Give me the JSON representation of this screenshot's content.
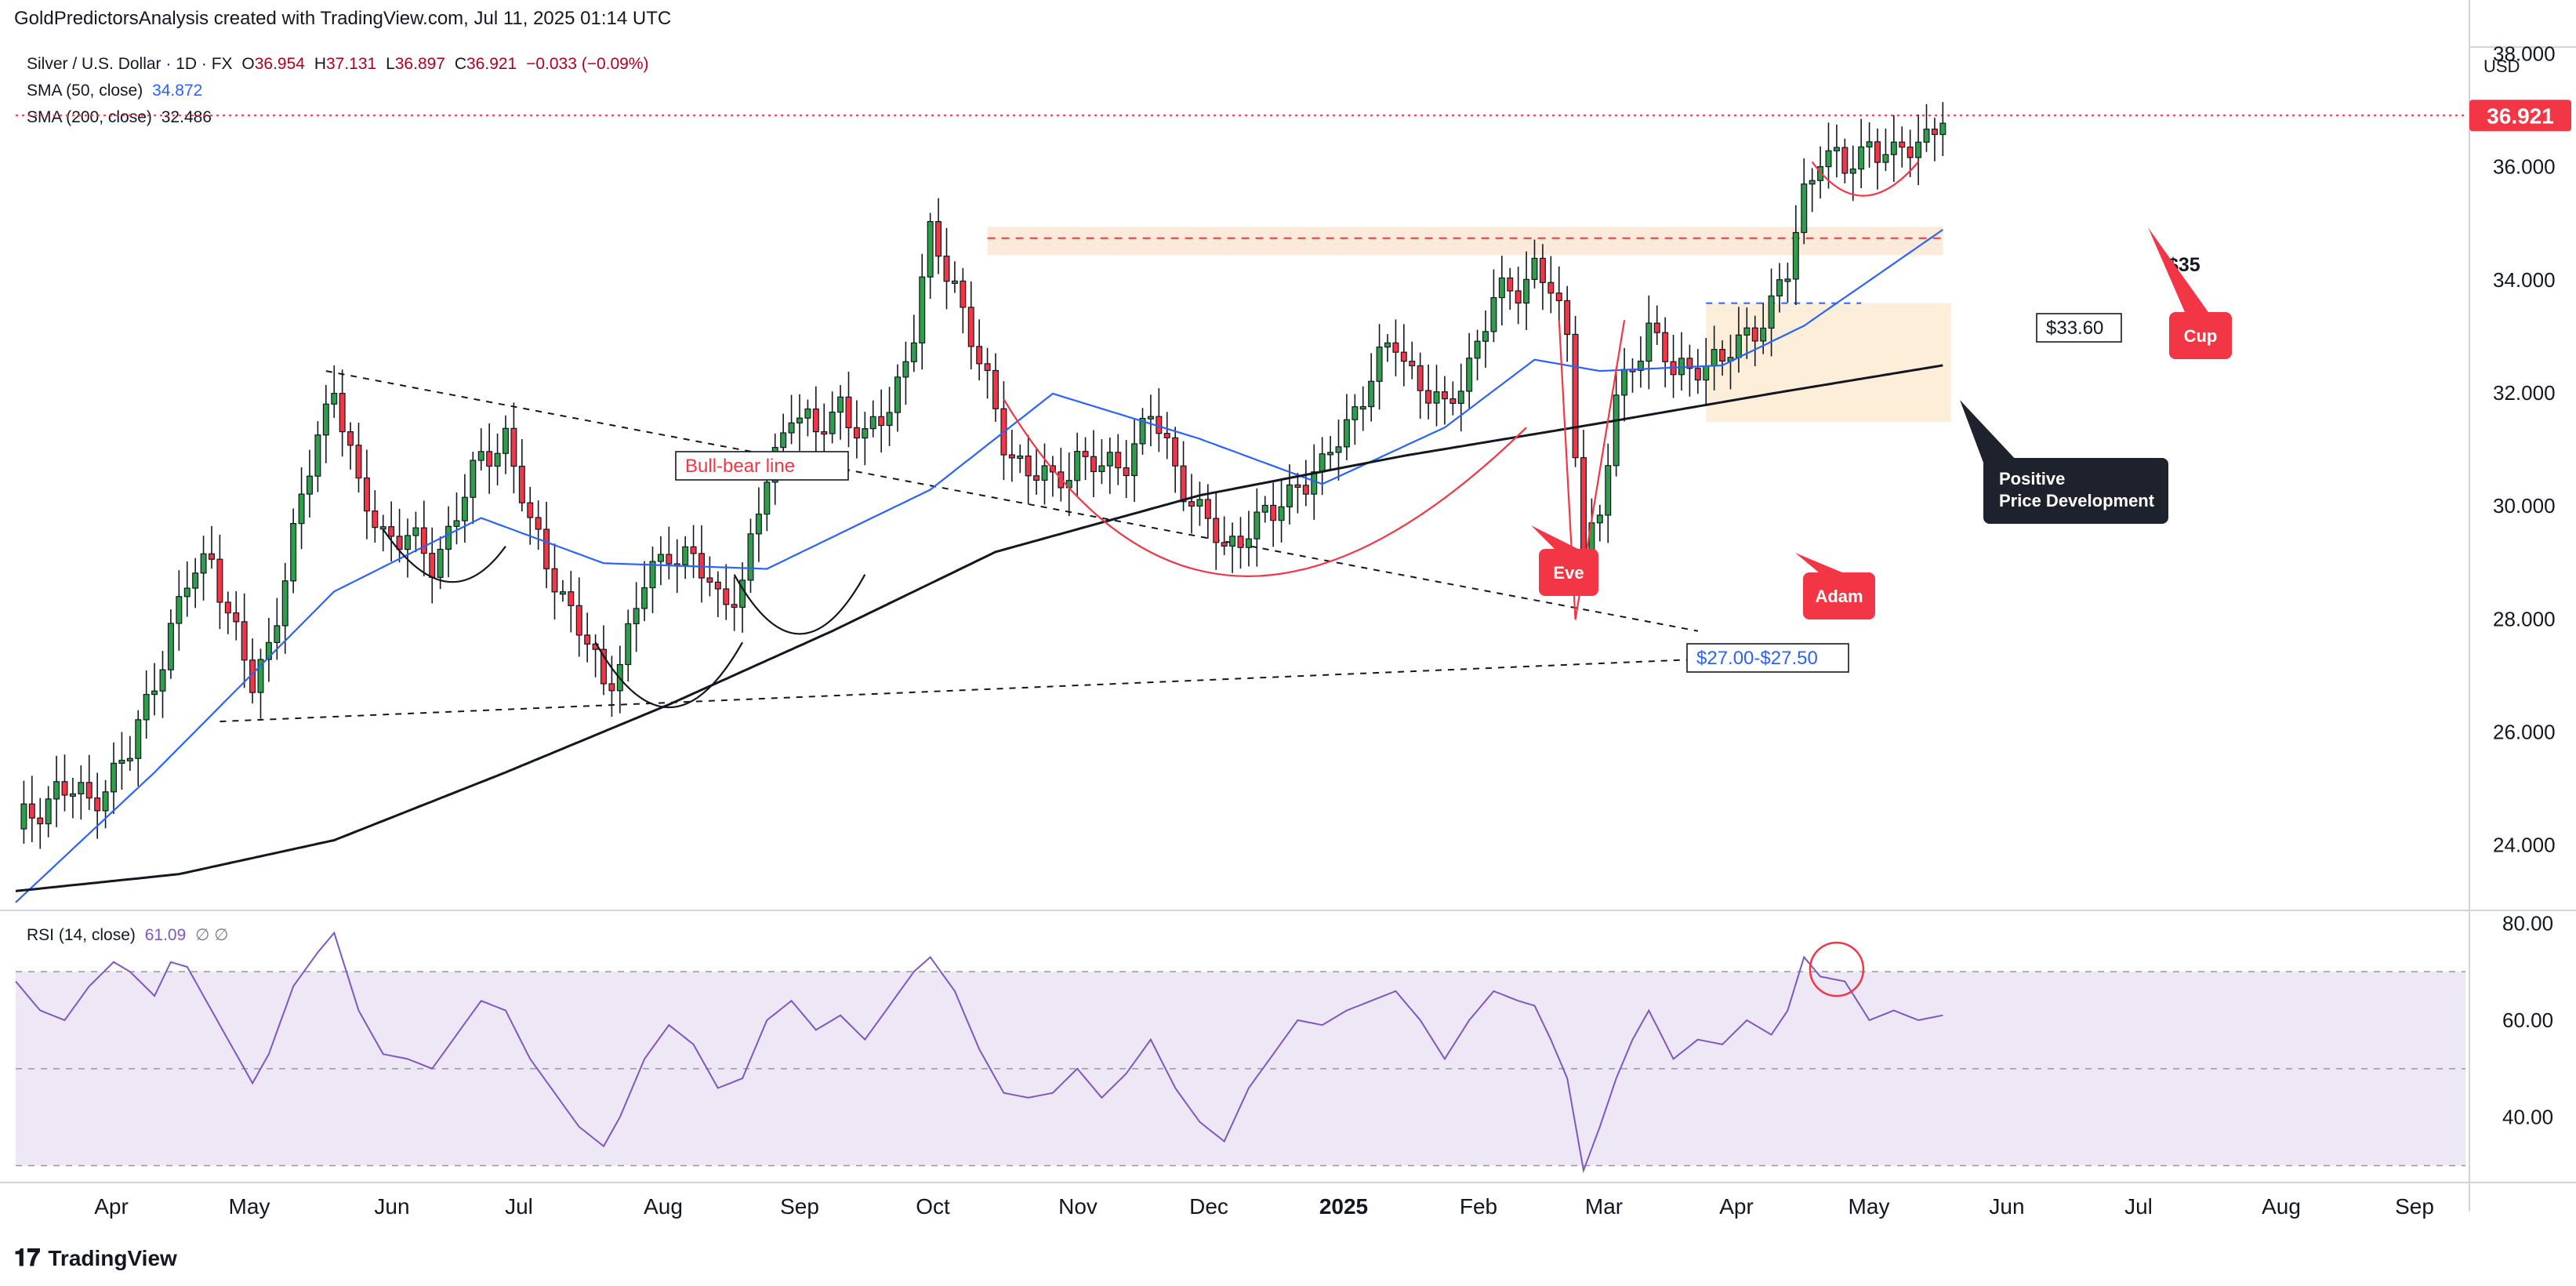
{
  "header": {
    "attribution": "GoldPredictorsAnalysis created with TradingView.com, Jul 11, 2025 01:14 UTC"
  },
  "legend": {
    "symbol": "Silver / U.S. Dollar · 1D · FX",
    "open_label": "O",
    "open": "36.954",
    "high_label": "H",
    "high": "37.131",
    "low_label": "L",
    "low": "36.897",
    "close_label": "C",
    "close": "36.921",
    "change": "−0.033 (−0.09%)",
    "sma50_label": "SMA (50, close)",
    "sma50_value": "34.872",
    "sma200_label": "SMA (200, close)",
    "sma200_value": "32.486",
    "rsi_label": "RSI (14, close)",
    "rsi_value": "61.09",
    "rsi_extra": "∅  ∅"
  },
  "currency": "USD",
  "footer": {
    "brand": "TradingView"
  },
  "colors": {
    "up": "#089981",
    "up_fill": "#2e9e4a",
    "down": "#f23645",
    "sma50": "#2962ff",
    "sma200": "#131722",
    "rsi": "#7e57c2",
    "rsi_band": "#ede7f6",
    "price_tag": "#f23645",
    "annotation_red": "#f23645",
    "note_dark": "#1e222d"
  },
  "chart_data": [
    {
      "type": "candlestick",
      "title": "Silver / U.S. Dollar · 1D · FX",
      "x_axis": {
        "ticks": [
          "Apr",
          "May",
          "Jun",
          "Jul",
          "Aug",
          "Sep",
          "Oct",
          "Nov",
          "Dec",
          "2025",
          "Feb",
          "Mar",
          "Apr",
          "May",
          "Jun",
          "Jul",
          "Aug",
          "Sep"
        ]
      },
      "y_axis": {
        "range": [
          22.9,
          38.2
        ],
        "ticks": [
          "24.000",
          "26.000",
          "28.000",
          "30.000",
          "32.000",
          "34.000",
          "36.000"
        ],
        "top_partial_tick": "38.000"
      },
      "last_price": "36.921",
      "series": [
        {
          "name": "Price",
          "close_path": [
            [
              0,
              24.3
            ],
            [
              5,
              25.0
            ],
            [
              9,
              24.8
            ],
            [
              14,
              25.6
            ],
            [
              17,
              27.0
            ],
            [
              21,
              28.6
            ],
            [
              24,
              29.2
            ],
            [
              26,
              28.1
            ],
            [
              29,
              26.8
            ],
            [
              31,
              27.6
            ],
            [
              34,
              29.4
            ],
            [
              37,
              31.3
            ],
            [
              39,
              32.2
            ],
            [
              42,
              30.2
            ],
            [
              45,
              29.6
            ],
            [
              48,
              29.4
            ],
            [
              51,
              29.0
            ],
            [
              54,
              29.9
            ],
            [
              57,
              30.8
            ],
            [
              60,
              31.3
            ],
            [
              63,
              29.6
            ],
            [
              66,
              28.8
            ],
            [
              69,
              27.8
            ],
            [
              72,
              26.9
            ],
            [
              74,
              27.3
            ],
            [
              77,
              28.6
            ],
            [
              80,
              29.3
            ],
            [
              83,
              29.0
            ],
            [
              86,
              28.4
            ],
            [
              89,
              28.6
            ],
            [
              92,
              30.5
            ],
            [
              95,
              31.8
            ],
            [
              98,
              31.2
            ],
            [
              101,
              31.9
            ],
            [
              104,
              31.1
            ],
            [
              107,
              31.8
            ],
            [
              110,
              33.1
            ],
            [
              112,
              34.7
            ],
            [
              115,
              34.0
            ],
            [
              118,
              32.5
            ],
            [
              121,
              31.2
            ],
            [
              124,
              30.6
            ],
            [
              127,
              30.4
            ],
            [
              130,
              30.9
            ],
            [
              133,
              30.6
            ],
            [
              136,
              30.9
            ],
            [
              139,
              31.6
            ],
            [
              142,
              30.7
            ],
            [
              145,
              29.9
            ],
            [
              148,
              29.2
            ],
            [
              151,
              29.7
            ],
            [
              154,
              29.8
            ],
            [
              157,
              30.5
            ],
            [
              160,
              30.6
            ],
            [
              163,
              31.5
            ],
            [
              166,
              32.3
            ],
            [
              169,
              32.9
            ],
            [
              172,
              32.2
            ],
            [
              175,
              31.6
            ],
            [
              178,
              32.6
            ],
            [
              181,
              33.6
            ],
            [
              184,
              33.9
            ],
            [
              186,
              34.3
            ],
            [
              188,
              33.8
            ],
            [
              190,
              32.9
            ],
            [
              192,
              29.4
            ],
            [
              194,
              29.8
            ],
            [
              196,
              31.8
            ],
            [
              198,
              32.6
            ],
            [
              200,
              33.2
            ],
            [
              203,
              32.3
            ],
            [
              206,
              32.6
            ],
            [
              209,
              32.5
            ],
            [
              212,
              33.1
            ],
            [
              215,
              33.5
            ],
            [
              217,
              34.1
            ],
            [
              219,
              35.6
            ],
            [
              221,
              36.3
            ],
            [
              224,
              35.9
            ],
            [
              227,
              36.5
            ],
            [
              230,
              36.1
            ],
            [
              233,
              36.5
            ],
            [
              236,
              36.9
            ]
          ]
        },
        {
          "name": "SMA (50, close)",
          "path": [
            [
              0,
              23.0
            ],
            [
              17,
              25.3
            ],
            [
              39,
              28.5
            ],
            [
              57,
              29.8
            ],
            [
              72,
              29.0
            ],
            [
              92,
              28.9
            ],
            [
              112,
              30.3
            ],
            [
              127,
              32.0
            ],
            [
              145,
              31.2
            ],
            [
              160,
              30.4
            ],
            [
              175,
              31.4
            ],
            [
              186,
              32.6
            ],
            [
              194,
              32.4
            ],
            [
              209,
              32.5
            ],
            [
              219,
              33.2
            ],
            [
              236,
              34.9
            ]
          ]
        },
        {
          "name": "SMA (200, close)",
          "path": [
            [
              0,
              23.2
            ],
            [
              20,
              23.5
            ],
            [
              39,
              24.1
            ],
            [
              60,
              25.3
            ],
            [
              80,
              26.5
            ],
            [
              100,
              27.8
            ],
            [
              120,
              29.2
            ],
            [
              145,
              30.2
            ],
            [
              170,
              30.9
            ],
            [
              195,
              31.5
            ],
            [
              215,
              32.0
            ],
            [
              236,
              32.5
            ]
          ]
        }
      ],
      "annotations": [
        {
          "kind": "label",
          "text": "Bull-bear line"
        },
        {
          "kind": "label",
          "text": "$27.00-$27.50"
        },
        {
          "kind": "label",
          "text": "$33.60"
        },
        {
          "kind": "label",
          "text": "$35"
        },
        {
          "kind": "callout",
          "text": "Eve"
        },
        {
          "kind": "callout",
          "text": "Adam"
        },
        {
          "kind": "callout",
          "text": "Cup"
        },
        {
          "kind": "note",
          "lines": [
            "Positive",
            "Price Development"
          ]
        }
      ]
    },
    {
      "type": "line",
      "title": "RSI (14, close)",
      "y_axis": {
        "range": [
          27,
          82
        ],
        "ticks": [
          "80.00",
          "60.00",
          "40.00"
        ],
        "bands": [
          30,
          50,
          70
        ]
      },
      "series": [
        {
          "name": "RSI",
          "path": [
            [
              0,
              68
            ],
            [
              3,
              62
            ],
            [
              6,
              60
            ],
            [
              9,
              67
            ],
            [
              12,
              72
            ],
            [
              14,
              70
            ],
            [
              17,
              65
            ],
            [
              19,
              72
            ],
            [
              21,
              71
            ],
            [
              24,
              62
            ],
            [
              26,
              56
            ],
            [
              29,
              47
            ],
            [
              31,
              53
            ],
            [
              34,
              67
            ],
            [
              37,
              74
            ],
            [
              39,
              78
            ],
            [
              42,
              62
            ],
            [
              45,
              53
            ],
            [
              48,
              52
            ],
            [
              51,
              50
            ],
            [
              54,
              57
            ],
            [
              57,
              64
            ],
            [
              60,
              62
            ],
            [
              63,
              52
            ],
            [
              66,
              45
            ],
            [
              69,
              38
            ],
            [
              72,
              34
            ],
            [
              74,
              40
            ],
            [
              77,
              52
            ],
            [
              80,
              59
            ],
            [
              83,
              55
            ],
            [
              86,
              46
            ],
            [
              89,
              48
            ],
            [
              92,
              60
            ],
            [
              95,
              64
            ],
            [
              98,
              58
            ],
            [
              101,
              61
            ],
            [
              104,
              56
            ],
            [
              107,
              63
            ],
            [
              110,
              70
            ],
            [
              112,
              73
            ],
            [
              115,
              66
            ],
            [
              118,
              54
            ],
            [
              121,
              45
            ],
            [
              124,
              44
            ],
            [
              127,
              45
            ],
            [
              130,
              50
            ],
            [
              133,
              44
            ],
            [
              136,
              49
            ],
            [
              139,
              56
            ],
            [
              142,
              46
            ],
            [
              145,
              39
            ],
            [
              148,
              35
            ],
            [
              151,
              46
            ],
            [
              154,
              53
            ],
            [
              157,
              60
            ],
            [
              160,
              59
            ],
            [
              163,
              62
            ],
            [
              166,
              64
            ],
            [
              169,
              66
            ],
            [
              172,
              60
            ],
            [
              175,
              52
            ],
            [
              178,
              60
            ],
            [
              181,
              66
            ],
            [
              184,
              64
            ],
            [
              186,
              63
            ],
            [
              188,
              56
            ],
            [
              190,
              48
            ],
            [
              192,
              29
            ],
            [
              194,
              38
            ],
            [
              196,
              48
            ],
            [
              198,
              56
            ],
            [
              200,
              62
            ],
            [
              203,
              52
            ],
            [
              206,
              56
            ],
            [
              209,
              55
            ],
            [
              212,
              60
            ],
            [
              215,
              57
            ],
            [
              217,
              62
            ],
            [
              219,
              73
            ],
            [
              221,
              69
            ],
            [
              224,
              68
            ],
            [
              227,
              60
            ],
            [
              230,
              62
            ],
            [
              233,
              60
            ],
            [
              236,
              61
            ]
          ]
        }
      ]
    }
  ]
}
